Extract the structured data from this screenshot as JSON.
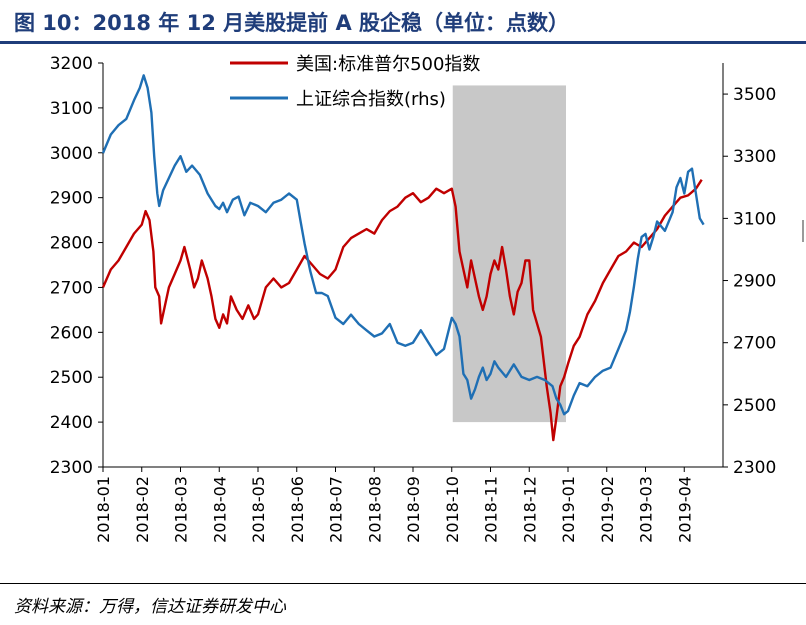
{
  "page": {
    "title": "图 10：2018 年 12 月美股提前 A 股企稳（单位：点数）",
    "source": "资料来源：万得，信达证券研发中心"
  },
  "colors": {
    "title": "#1f3d7a",
    "sp500": "#c00000",
    "shcomp": "#1f6fb4",
    "shade": "#c8c8c8"
  },
  "chart_data": {
    "type": "line",
    "title": "2018 年 12 月美股提前 A 股企稳",
    "x": [
      "2018-01",
      "2018-02",
      "2018-03",
      "2018-04",
      "2018-05",
      "2018-06",
      "2018-07",
      "2018-08",
      "2018-09",
      "2018-10",
      "2018-11",
      "2018-12",
      "2019-01",
      "2019-02",
      "2019-03",
      "2019-04"
    ],
    "ylim_left": [
      2300,
      3200
    ],
    "yticks_left": [
      2300,
      2400,
      2500,
      2600,
      2700,
      2800,
      2900,
      3000,
      3100,
      3200
    ],
    "ylim_right": [
      2300,
      3600
    ],
    "yticks_right": [
      2300,
      2500,
      2700,
      2900,
      3100,
      3300,
      3500
    ],
    "legend_position": "top-center",
    "highlight": {
      "from": "2018-10",
      "to": "2018-12",
      "label": ""
    },
    "series": [
      {
        "name": "美国:标准普尔500指数",
        "axis": "left",
        "color": "#c00000",
        "points": [
          [
            0,
            2700
          ],
          [
            0.2,
            2740
          ],
          [
            0.4,
            2760
          ],
          [
            0.6,
            2790
          ],
          [
            0.8,
            2820
          ],
          [
            1.0,
            2840
          ],
          [
            1.1,
            2870
          ],
          [
            1.2,
            2850
          ],
          [
            1.3,
            2780
          ],
          [
            1.35,
            2700
          ],
          [
            1.45,
            2680
          ],
          [
            1.5,
            2620
          ],
          [
            1.6,
            2660
          ],
          [
            1.7,
            2700
          ],
          [
            1.85,
            2730
          ],
          [
            2.0,
            2760
          ],
          [
            2.1,
            2790
          ],
          [
            2.25,
            2740
          ],
          [
            2.35,
            2700
          ],
          [
            2.45,
            2720
          ],
          [
            2.55,
            2760
          ],
          [
            2.7,
            2720
          ],
          [
            2.8,
            2680
          ],
          [
            2.9,
            2630
          ],
          [
            3.0,
            2610
          ],
          [
            3.1,
            2640
          ],
          [
            3.2,
            2620
          ],
          [
            3.3,
            2680
          ],
          [
            3.45,
            2650
          ],
          [
            3.6,
            2630
          ],
          [
            3.75,
            2660
          ],
          [
            3.9,
            2630
          ],
          [
            4.0,
            2640
          ],
          [
            4.2,
            2700
          ],
          [
            4.4,
            2720
          ],
          [
            4.6,
            2700
          ],
          [
            4.8,
            2710
          ],
          [
            5.0,
            2740
          ],
          [
            5.2,
            2770
          ],
          [
            5.4,
            2750
          ],
          [
            5.6,
            2730
          ],
          [
            5.8,
            2720
          ],
          [
            6.0,
            2740
          ],
          [
            6.2,
            2790
          ],
          [
            6.4,
            2810
          ],
          [
            6.6,
            2820
          ],
          [
            6.8,
            2830
          ],
          [
            7.0,
            2820
          ],
          [
            7.2,
            2850
          ],
          [
            7.4,
            2870
          ],
          [
            7.6,
            2880
          ],
          [
            7.8,
            2900
          ],
          [
            8.0,
            2910
          ],
          [
            8.2,
            2890
          ],
          [
            8.4,
            2900
          ],
          [
            8.6,
            2920
          ],
          [
            8.8,
            2910
          ],
          [
            9.0,
            2920
          ],
          [
            9.1,
            2880
          ],
          [
            9.2,
            2780
          ],
          [
            9.3,
            2740
          ],
          [
            9.4,
            2700
          ],
          [
            9.5,
            2760
          ],
          [
            9.6,
            2720
          ],
          [
            9.7,
            2680
          ],
          [
            9.8,
            2650
          ],
          [
            9.9,
            2680
          ],
          [
            10.0,
            2730
          ],
          [
            10.1,
            2760
          ],
          [
            10.2,
            2740
          ],
          [
            10.3,
            2790
          ],
          [
            10.4,
            2740
          ],
          [
            10.5,
            2680
          ],
          [
            10.6,
            2640
          ],
          [
            10.7,
            2690
          ],
          [
            10.8,
            2710
          ],
          [
            10.9,
            2760
          ],
          [
            11.0,
            2760
          ],
          [
            11.1,
            2650
          ],
          [
            11.2,
            2620
          ],
          [
            11.3,
            2590
          ],
          [
            11.45,
            2480
          ],
          [
            11.55,
            2420
          ],
          [
            11.62,
            2360
          ],
          [
            11.7,
            2410
          ],
          [
            11.8,
            2480
          ],
          [
            11.9,
            2500
          ],
          [
            12.0,
            2530
          ],
          [
            12.15,
            2570
          ],
          [
            12.3,
            2590
          ],
          [
            12.5,
            2640
          ],
          [
            12.7,
            2670
          ],
          [
            12.9,
            2710
          ],
          [
            13.1,
            2740
          ],
          [
            13.3,
            2770
          ],
          [
            13.5,
            2780
          ],
          [
            13.7,
            2800
          ],
          [
            13.9,
            2790
          ],
          [
            14.1,
            2810
          ],
          [
            14.3,
            2830
          ],
          [
            14.5,
            2860
          ],
          [
            14.7,
            2880
          ],
          [
            14.9,
            2900
          ],
          [
            15.1,
            2905
          ],
          [
            15.3,
            2920
          ],
          [
            15.45,
            2940
          ]
        ]
      },
      {
        "name": "上证综合指数(rhs)",
        "axis": "right",
        "color": "#1f6fb4",
        "points": [
          [
            0,
            3310
          ],
          [
            0.2,
            3370
          ],
          [
            0.4,
            3400
          ],
          [
            0.6,
            3420
          ],
          [
            0.8,
            3480
          ],
          [
            0.95,
            3520
          ],
          [
            1.05,
            3560
          ],
          [
            1.15,
            3520
          ],
          [
            1.25,
            3440
          ],
          [
            1.32,
            3300
          ],
          [
            1.4,
            3180
          ],
          [
            1.45,
            3140
          ],
          [
            1.55,
            3190
          ],
          [
            1.7,
            3230
          ],
          [
            1.85,
            3270
          ],
          [
            2.0,
            3300
          ],
          [
            2.15,
            3250
          ],
          [
            2.3,
            3270
          ],
          [
            2.5,
            3240
          ],
          [
            2.7,
            3180
          ],
          [
            2.9,
            3140
          ],
          [
            3.0,
            3130
          ],
          [
            3.1,
            3150
          ],
          [
            3.2,
            3120
          ],
          [
            3.35,
            3160
          ],
          [
            3.5,
            3170
          ],
          [
            3.65,
            3110
          ],
          [
            3.8,
            3150
          ],
          [
            4.0,
            3140
          ],
          [
            4.2,
            3120
          ],
          [
            4.4,
            3150
          ],
          [
            4.6,
            3160
          ],
          [
            4.8,
            3180
          ],
          [
            5.0,
            3160
          ],
          [
            5.1,
            3090
          ],
          [
            5.2,
            3020
          ],
          [
            5.35,
            2930
          ],
          [
            5.5,
            2860
          ],
          [
            5.65,
            2860
          ],
          [
            5.8,
            2850
          ],
          [
            6.0,
            2780
          ],
          [
            6.2,
            2760
          ],
          [
            6.4,
            2790
          ],
          [
            6.6,
            2760
          ],
          [
            6.8,
            2740
          ],
          [
            7.0,
            2720
          ],
          [
            7.2,
            2730
          ],
          [
            7.4,
            2760
          ],
          [
            7.6,
            2700
          ],
          [
            7.8,
            2690
          ],
          [
            8.0,
            2700
          ],
          [
            8.2,
            2740
          ],
          [
            8.4,
            2700
          ],
          [
            8.6,
            2660
          ],
          [
            8.8,
            2680
          ],
          [
            9.0,
            2780
          ],
          [
            9.1,
            2760
          ],
          [
            9.2,
            2720
          ],
          [
            9.3,
            2600
          ],
          [
            9.4,
            2580
          ],
          [
            9.5,
            2520
          ],
          [
            9.6,
            2550
          ],
          [
            9.7,
            2590
          ],
          [
            9.8,
            2620
          ],
          [
            9.9,
            2580
          ],
          [
            10.0,
            2600
          ],
          [
            10.1,
            2640
          ],
          [
            10.2,
            2620
          ],
          [
            10.4,
            2590
          ],
          [
            10.6,
            2630
          ],
          [
            10.8,
            2590
          ],
          [
            11.0,
            2580
          ],
          [
            11.2,
            2590
          ],
          [
            11.4,
            2580
          ],
          [
            11.6,
            2560
          ],
          [
            11.7,
            2520
          ],
          [
            11.8,
            2500
          ],
          [
            11.9,
            2470
          ],
          [
            12.0,
            2480
          ],
          [
            12.15,
            2530
          ],
          [
            12.3,
            2570
          ],
          [
            12.5,
            2560
          ],
          [
            12.7,
            2590
          ],
          [
            12.9,
            2610
          ],
          [
            13.1,
            2620
          ],
          [
            13.3,
            2680
          ],
          [
            13.5,
            2740
          ],
          [
            13.6,
            2800
          ],
          [
            13.7,
            2880
          ],
          [
            13.8,
            2970
          ],
          [
            13.9,
            3040
          ],
          [
            14.0,
            3050
          ],
          [
            14.1,
            3000
          ],
          [
            14.2,
            3040
          ],
          [
            14.3,
            3090
          ],
          [
            14.5,
            3060
          ],
          [
            14.7,
            3120
          ],
          [
            14.8,
            3200
          ],
          [
            14.9,
            3230
          ],
          [
            15.0,
            3180
          ],
          [
            15.1,
            3250
          ],
          [
            15.2,
            3260
          ],
          [
            15.3,
            3180
          ],
          [
            15.4,
            3100
          ],
          [
            15.5,
            3080
          ]
        ]
      }
    ]
  }
}
